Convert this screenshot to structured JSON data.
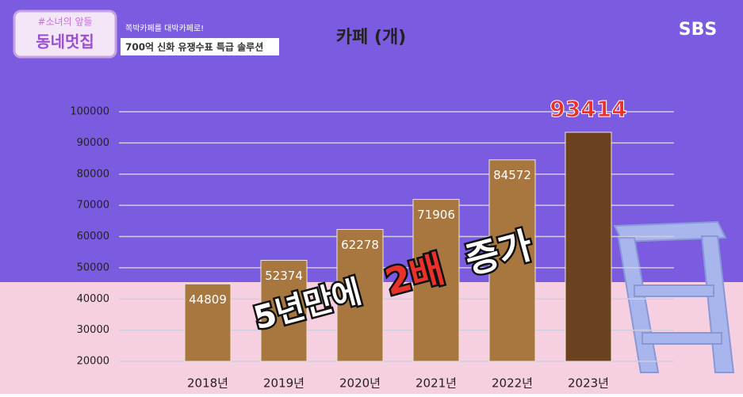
{
  "header": {
    "logo_top": "#소녀의 앞들",
    "logo_main": "동네멋집",
    "tagline": "쪽박카페를 대박카페로!",
    "subtitle": "700억 신화 유쟁수표 특급 솔루션",
    "channel": "SBS"
  },
  "chart_data": {
    "type": "bar",
    "title": "카페 (개)",
    "categories": [
      "2018년",
      "2019년",
      "2020년",
      "2021년",
      "2022년",
      "2023년"
    ],
    "values": [
      44809,
      52374,
      62278,
      71906,
      84572,
      93414
    ],
    "colors": [
      "#a8773f",
      "#a8773f",
      "#a8773f",
      "#a8773f",
      "#a8773f",
      "#6b4120"
    ],
    "ylim": [
      20000,
      100000
    ],
    "yticks": [
      20000,
      30000,
      40000,
      50000,
      60000,
      70000,
      80000,
      90000,
      100000
    ],
    "grid": true,
    "annotation": [
      "5년만에",
      "2배",
      "증가"
    ]
  }
}
